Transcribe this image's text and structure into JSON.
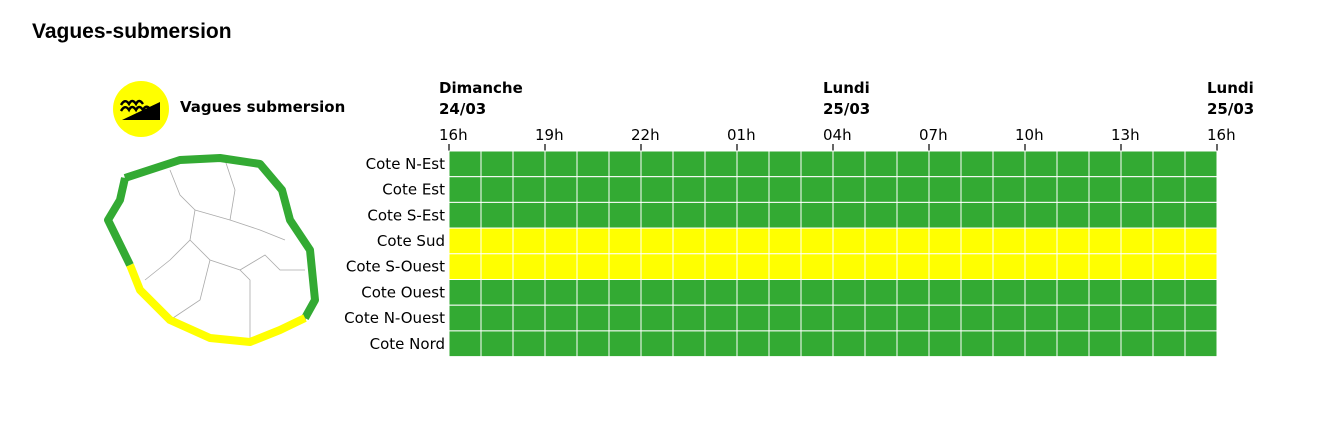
{
  "page": {
    "title": "Vagues-submersion"
  },
  "legend": {
    "label": "Vagues submersion",
    "icon": "waves-submersion-icon"
  },
  "colors": {
    "green": "#33aa33",
    "yellow": "#ffff00",
    "grid": "#ffffff",
    "map_fill": "#ffffff",
    "map_border": "#999999"
  },
  "chart_data": {
    "type": "heatmap",
    "day_labels": [
      {
        "day": "Dimanche",
        "date": "24/03",
        "hour_index": 0
      },
      {
        "day": "Lundi",
        "date": "25/03",
        "hour_index": 4
      },
      {
        "day": "Lundi",
        "date": "25/03",
        "hour_index": 8
      }
    ],
    "hour_ticks": [
      "16h",
      "19h",
      "22h",
      "01h",
      "04h",
      "07h",
      "10h",
      "13h",
      "16h"
    ],
    "columns_per_tick": 3,
    "rows": [
      {
        "name": "Cote N-Est",
        "level": "green"
      },
      {
        "name": "Cote Est",
        "level": "green"
      },
      {
        "name": "Cote S-Est",
        "level": "green"
      },
      {
        "name": "Cote Sud",
        "level": "yellow"
      },
      {
        "name": "Cote S-Ouest",
        "level": "yellow"
      },
      {
        "name": "Cote Ouest",
        "level": "green"
      },
      {
        "name": "Cote N-Ouest",
        "level": "green"
      },
      {
        "name": "Cote Nord",
        "level": "green"
      }
    ]
  }
}
